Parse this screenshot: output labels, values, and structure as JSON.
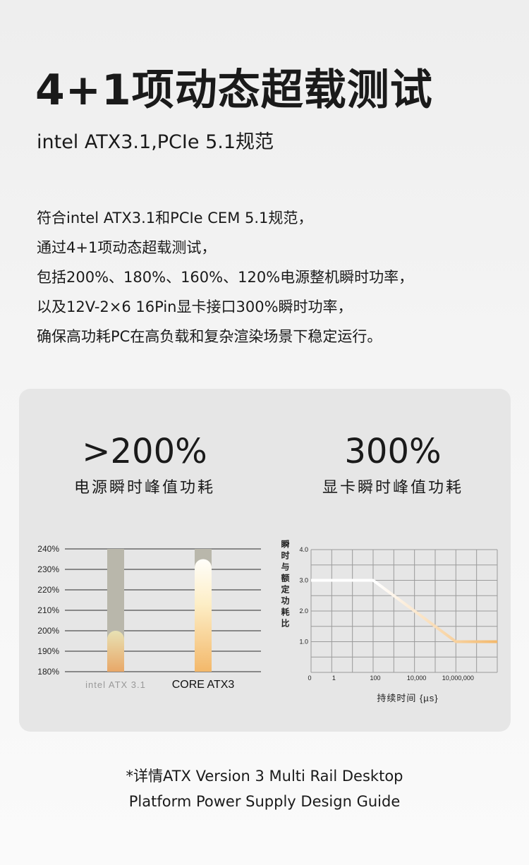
{
  "header": {
    "title": "4+1项动态超载测试",
    "subtitle": "intel ATX3.1,PCIe 5.1规范"
  },
  "description": [
    "符合intel ATX3.1和PCIe CEM 5.1规范，",
    "通过4+1项动态超载测试，",
    "包括200%、180%、160%、120%电源整机瞬时功率，",
    "以及12V-2×6 16Pin显卡接口300%瞬时功率，",
    "确保高功耗PC在高负载和复杂渲染场景下稳定运行。"
  ],
  "stats": [
    {
      "value": ">200%",
      "label": "电源瞬时峰值功耗"
    },
    {
      "value": "300%",
      "label": "显卡瞬时峰值功耗"
    }
  ],
  "footer": [
    "*详情ATX Version 3 Multi Rail Desktop",
    "Platform Power Supply Design Guide"
  ],
  "colors": {
    "accent": "#f3b86a",
    "bar_track": "#b9b7ab",
    "grid": "#333333"
  },
  "chart_data": [
    {
      "type": "bar",
      "categories": [
        "intel ATX 3.1",
        "CORE ATX3"
      ],
      "values": [
        200,
        235
      ],
      "ylim": [
        180,
        240
      ],
      "yticks": [
        "180%",
        "190%",
        "200%",
        "210%",
        "220%",
        "230%",
        "240%"
      ],
      "ytick_values": [
        180,
        190,
        200,
        210,
        220,
        230,
        240
      ],
      "grid": true,
      "title": "",
      "xlabel": "",
      "ylabel": ""
    },
    {
      "type": "line",
      "xticks": [
        "0",
        "1",
        "100",
        "10,000",
        "10,000,000"
      ],
      "yticks": [
        "1.0",
        "2.0",
        "3.0",
        "4.0"
      ],
      "ytick_values": [
        1,
        2,
        3,
        4
      ],
      "ylim": [
        0,
        4
      ],
      "series": [
        {
          "points": [
            {
              "x": "0",
              "y": 3.0
            },
            {
              "x": "100",
              "y": 3.0
            },
            {
              "x": "10,000,000",
              "y": 1.0
            }
          ],
          "extends_to_axis_end": true
        }
      ],
      "xlabel": "持续时间 {µs}",
      "ylabel": "瞬时与额定功耗比",
      "grid": true,
      "title": ""
    }
  ]
}
